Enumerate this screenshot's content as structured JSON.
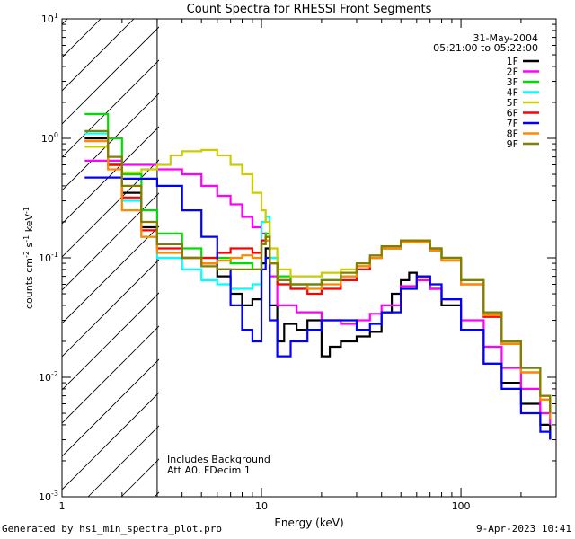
{
  "chart_data": {
    "type": "line",
    "title": "Count Spectra for RHESSI Front Segments",
    "xlabel": "Energy (keV)",
    "ylabel_parts": [
      "counts cm",
      "-2",
      " s",
      "-1",
      " keV",
      "-1"
    ],
    "xscale": "log",
    "yscale": "log",
    "xlim": [
      1,
      300
    ],
    "ylim": [
      0.001,
      10
    ],
    "x_ticks": [
      "1",
      "10",
      "100"
    ],
    "y_ticks": [
      {
        "base": "10",
        "exp": "-3",
        "value": 0.001
      },
      {
        "base": "10",
        "exp": "-2",
        "value": 0.01
      },
      {
        "base": "10",
        "exp": "-1",
        "value": 0.1
      },
      {
        "base": "10",
        "exp": "0",
        "value": 1
      },
      {
        "base": "10",
        "exp": "1",
        "value": 10
      }
    ],
    "date": "31-May-2004",
    "time_range": "05:21:00 to 05:22:00",
    "shaded_region_max_kev": 3,
    "annotations": [
      "Includes Background",
      "Att A0, FDecim 1"
    ],
    "legend_position": "top-right",
    "series": [
      {
        "name": "1F",
        "color": "#000000",
        "points": [
          [
            1.3,
            1.0
          ],
          [
            1.7,
            0.6
          ],
          [
            2.0,
            0.35
          ],
          [
            2.5,
            0.18
          ],
          [
            3.0,
            0.13
          ],
          [
            4,
            0.1
          ],
          [
            5,
            0.09
          ],
          [
            6,
            0.07
          ],
          [
            7,
            0.05
          ],
          [
            8,
            0.04
          ],
          [
            9,
            0.045
          ],
          [
            10,
            0.09
          ],
          [
            10.5,
            0.12
          ],
          [
            11,
            0.04
          ],
          [
            12,
            0.02
          ],
          [
            13,
            0.028
          ],
          [
            15,
            0.025
          ],
          [
            17,
            0.03
          ],
          [
            20,
            0.015
          ],
          [
            22,
            0.018
          ],
          [
            25,
            0.02
          ],
          [
            30,
            0.022
          ],
          [
            35,
            0.024
          ],
          [
            40,
            0.035
          ],
          [
            45,
            0.05
          ],
          [
            50,
            0.065
          ],
          [
            55,
            0.075
          ],
          [
            60,
            0.07
          ],
          [
            70,
            0.055
          ],
          [
            80,
            0.04
          ],
          [
            100,
            0.025
          ],
          [
            130,
            0.013
          ],
          [
            160,
            0.009
          ],
          [
            200,
            0.006
          ],
          [
            250,
            0.004
          ],
          [
            280,
            0.003
          ]
        ]
      },
      {
        "name": "2F",
        "color": "#ff00ff",
        "points": [
          [
            1.3,
            0.65
          ],
          [
            2.0,
            0.6
          ],
          [
            3.0,
            0.55
          ],
          [
            4,
            0.5
          ],
          [
            5,
            0.4
          ],
          [
            6,
            0.33
          ],
          [
            7,
            0.28
          ],
          [
            8,
            0.22
          ],
          [
            9,
            0.18
          ],
          [
            10,
            0.16
          ],
          [
            10.5,
            0.14
          ],
          [
            11,
            0.07
          ],
          [
            12,
            0.04
          ],
          [
            15,
            0.035
          ],
          [
            20,
            0.03
          ],
          [
            25,
            0.028
          ],
          [
            30,
            0.03
          ],
          [
            35,
            0.034
          ],
          [
            40,
            0.04
          ],
          [
            50,
            0.058
          ],
          [
            60,
            0.065
          ],
          [
            70,
            0.055
          ],
          [
            80,
            0.045
          ],
          [
            100,
            0.03
          ],
          [
            130,
            0.018
          ],
          [
            160,
            0.012
          ],
          [
            200,
            0.008
          ],
          [
            250,
            0.005
          ],
          [
            280,
            0.004
          ]
        ]
      },
      {
        "name": "3F",
        "color": "#00dd00",
        "points": [
          [
            1.3,
            1.6
          ],
          [
            1.7,
            1.0
          ],
          [
            2.0,
            0.5
          ],
          [
            2.5,
            0.25
          ],
          [
            3.0,
            0.16
          ],
          [
            4,
            0.12
          ],
          [
            5,
            0.1
          ],
          [
            6,
            0.1
          ],
          [
            7,
            0.09
          ],
          [
            8,
            0.09
          ],
          [
            9,
            0.08
          ],
          [
            10,
            0.14
          ],
          [
            10.5,
            0.16
          ],
          [
            11,
            0.1
          ],
          [
            12,
            0.07
          ],
          [
            14,
            0.06
          ],
          [
            17,
            0.06
          ],
          [
            20,
            0.065
          ],
          [
            25,
            0.07
          ],
          [
            30,
            0.085
          ],
          [
            35,
            0.1
          ],
          [
            40,
            0.12
          ],
          [
            50,
            0.14
          ],
          [
            60,
            0.14
          ],
          [
            70,
            0.12
          ],
          [
            80,
            0.1
          ],
          [
            100,
            0.065
          ],
          [
            130,
            0.035
          ],
          [
            160,
            0.02
          ],
          [
            200,
            0.012
          ],
          [
            250,
            0.007
          ],
          [
            280,
            0.005
          ]
        ]
      },
      {
        "name": "4F",
        "color": "#00ffff",
        "points": [
          [
            1.3,
            1.1
          ],
          [
            1.7,
            0.6
          ],
          [
            2.0,
            0.3
          ],
          [
            2.5,
            0.15
          ],
          [
            3.0,
            0.1
          ],
          [
            4,
            0.08
          ],
          [
            5,
            0.065
          ],
          [
            6,
            0.06
          ],
          [
            7,
            0.055
          ],
          [
            8,
            0.055
          ],
          [
            9,
            0.06
          ],
          [
            10,
            0.2
          ],
          [
            10.5,
            0.22
          ],
          [
            11,
            0.1
          ],
          [
            12,
            0.06
          ],
          [
            14,
            0.055
          ],
          [
            17,
            0.06
          ],
          [
            20,
            0.065
          ],
          [
            25,
            0.07
          ],
          [
            30,
            0.08
          ],
          [
            35,
            0.1
          ],
          [
            40,
            0.12
          ],
          [
            50,
            0.14
          ],
          [
            60,
            0.14
          ],
          [
            70,
            0.12
          ],
          [
            80,
            0.1
          ],
          [
            100,
            0.065
          ],
          [
            130,
            0.035
          ],
          [
            160,
            0.02
          ],
          [
            200,
            0.012
          ],
          [
            250,
            0.007
          ],
          [
            280,
            0.005
          ]
        ]
      },
      {
        "name": "5F",
        "color": "#cccc00",
        "points": [
          [
            1.3,
            0.85
          ],
          [
            1.7,
            0.6
          ],
          [
            2.0,
            0.52
          ],
          [
            2.5,
            0.55
          ],
          [
            3.0,
            0.6
          ],
          [
            3.5,
            0.72
          ],
          [
            4,
            0.78
          ],
          [
            5,
            0.8
          ],
          [
            6,
            0.72
          ],
          [
            7,
            0.6
          ],
          [
            8,
            0.5
          ],
          [
            9,
            0.35
          ],
          [
            10,
            0.25
          ],
          [
            10.5,
            0.2
          ],
          [
            11,
            0.12
          ],
          [
            12,
            0.08
          ],
          [
            14,
            0.07
          ],
          [
            17,
            0.07
          ],
          [
            20,
            0.075
          ],
          [
            25,
            0.08
          ],
          [
            30,
            0.09
          ],
          [
            35,
            0.1
          ],
          [
            40,
            0.12
          ],
          [
            50,
            0.14
          ],
          [
            60,
            0.14
          ],
          [
            70,
            0.12
          ],
          [
            80,
            0.1
          ],
          [
            100,
            0.065
          ],
          [
            130,
            0.035
          ],
          [
            160,
            0.02
          ],
          [
            200,
            0.012
          ],
          [
            250,
            0.007
          ],
          [
            280,
            0.005
          ]
        ]
      },
      {
        "name": "6F",
        "color": "#ff0000",
        "points": [
          [
            1.3,
            0.95
          ],
          [
            1.7,
            0.6
          ],
          [
            2.0,
            0.32
          ],
          [
            2.5,
            0.17
          ],
          [
            3.0,
            0.12
          ],
          [
            4,
            0.1
          ],
          [
            5,
            0.1
          ],
          [
            6,
            0.11
          ],
          [
            7,
            0.12
          ],
          [
            8,
            0.12
          ],
          [
            9,
            0.11
          ],
          [
            10,
            0.14
          ],
          [
            10.5,
            0.15
          ],
          [
            11,
            0.09
          ],
          [
            12,
            0.06
          ],
          [
            14,
            0.055
          ],
          [
            17,
            0.05
          ],
          [
            20,
            0.055
          ],
          [
            25,
            0.065
          ],
          [
            30,
            0.08
          ],
          [
            35,
            0.1
          ],
          [
            40,
            0.12
          ],
          [
            50,
            0.14
          ],
          [
            60,
            0.135
          ],
          [
            70,
            0.115
          ],
          [
            80,
            0.095
          ],
          [
            100,
            0.06
          ],
          [
            130,
            0.032
          ],
          [
            160,
            0.019
          ],
          [
            200,
            0.011
          ],
          [
            250,
            0.0065
          ],
          [
            280,
            0.0045
          ]
        ]
      },
      {
        "name": "7F",
        "color": "#0000ff",
        "points": [
          [
            1.3,
            0.47
          ],
          [
            2.0,
            0.46
          ],
          [
            3.0,
            0.4
          ],
          [
            4,
            0.25
          ],
          [
            5,
            0.15
          ],
          [
            6,
            0.08
          ],
          [
            7,
            0.04
          ],
          [
            8,
            0.025
          ],
          [
            9,
            0.02
          ],
          [
            10,
            0.08
          ],
          [
            10.5,
            0.1
          ],
          [
            11,
            0.03
          ],
          [
            12,
            0.015
          ],
          [
            14,
            0.02
          ],
          [
            17,
            0.025
          ],
          [
            20,
            0.03
          ],
          [
            25,
            0.03
          ],
          [
            30,
            0.025
          ],
          [
            35,
            0.028
          ],
          [
            40,
            0.035
          ],
          [
            50,
            0.055
          ],
          [
            60,
            0.07
          ],
          [
            70,
            0.06
          ],
          [
            80,
            0.045
          ],
          [
            100,
            0.025
          ],
          [
            130,
            0.013
          ],
          [
            160,
            0.008
          ],
          [
            200,
            0.005
          ],
          [
            250,
            0.0035
          ],
          [
            280,
            0.003
          ]
        ]
      },
      {
        "name": "8F",
        "color": "#ff8800",
        "points": [
          [
            1.3,
            0.95
          ],
          [
            1.7,
            0.55
          ],
          [
            2.0,
            0.25
          ],
          [
            2.5,
            0.15
          ],
          [
            3.0,
            0.11
          ],
          [
            4,
            0.1
          ],
          [
            5,
            0.09
          ],
          [
            6,
            0.095
          ],
          [
            7,
            0.1
          ],
          [
            8,
            0.105
          ],
          [
            9,
            0.1
          ],
          [
            10,
            0.13
          ],
          [
            10.5,
            0.14
          ],
          [
            11,
            0.09
          ],
          [
            12,
            0.065
          ],
          [
            14,
            0.06
          ],
          [
            17,
            0.055
          ],
          [
            20,
            0.06
          ],
          [
            25,
            0.07
          ],
          [
            30,
            0.085
          ],
          [
            35,
            0.1
          ],
          [
            40,
            0.12
          ],
          [
            50,
            0.135
          ],
          [
            60,
            0.135
          ],
          [
            70,
            0.115
          ],
          [
            80,
            0.095
          ],
          [
            100,
            0.06
          ],
          [
            130,
            0.033
          ],
          [
            160,
            0.019
          ],
          [
            200,
            0.011
          ],
          [
            250,
            0.0065
          ],
          [
            280,
            0.0045
          ]
        ]
      },
      {
        "name": "9F",
        "color": "#808000",
        "points": [
          [
            1.3,
            1.15
          ],
          [
            1.7,
            0.7
          ],
          [
            2.0,
            0.4
          ],
          [
            2.5,
            0.2
          ],
          [
            3.0,
            0.13
          ],
          [
            4,
            0.1
          ],
          [
            5,
            0.085
          ],
          [
            6,
            0.08
          ],
          [
            7,
            0.08
          ],
          [
            8,
            0.08
          ],
          [
            9,
            0.08
          ],
          [
            10,
            0.13
          ],
          [
            10.5,
            0.15
          ],
          [
            11,
            0.09
          ],
          [
            12,
            0.065
          ],
          [
            14,
            0.06
          ],
          [
            17,
            0.06
          ],
          [
            20,
            0.065
          ],
          [
            25,
            0.075
          ],
          [
            30,
            0.09
          ],
          [
            35,
            0.105
          ],
          [
            40,
            0.125
          ],
          [
            50,
            0.14
          ],
          [
            60,
            0.14
          ],
          [
            70,
            0.12
          ],
          [
            80,
            0.1
          ],
          [
            100,
            0.065
          ],
          [
            130,
            0.035
          ],
          [
            160,
            0.02
          ],
          [
            200,
            0.012
          ],
          [
            250,
            0.007
          ],
          [
            280,
            0.005
          ]
        ]
      }
    ]
  },
  "footer": {
    "left": "Generated by hsi_min_spectra_plot.pro",
    "right": "9-Apr-2023 10:41"
  }
}
